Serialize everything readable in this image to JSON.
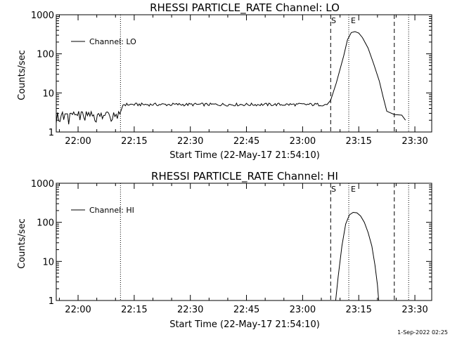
{
  "charts": [
    {
      "title": "RHESSI PARTICLE_RATE Channel: LO",
      "ylabel": "Counts/sec",
      "xlabel": "Start Time (22-May-17 21:54:10)",
      "legend": "Channel: LO",
      "marker_s": "S",
      "marker_e": "E"
    },
    {
      "title": "RHESSI PARTICLE_RATE Channel: HI",
      "ylabel": "Counts/sec",
      "xlabel": "Start Time (22-May-17 21:54:10)",
      "legend": "Channel: HI",
      "marker_s": "S",
      "marker_e": "E"
    }
  ],
  "footer": "1-Sep-2022 02:25",
  "chart_data": [
    {
      "type": "line",
      "title": "RHESSI PARTICLE_RATE Channel: LO",
      "xlabel": "Start Time (22-May-17 21:54:10)",
      "ylabel": "Counts/sec",
      "x_tick_labels": [
        "22:00",
        "22:15",
        "22:30",
        "22:45",
        "23:00",
        "23:15",
        "23:30"
      ],
      "y_tick_labels": [
        "1",
        "10",
        "100",
        "1000"
      ],
      "y_scale": "log",
      "xlim": [
        "21:54:10",
        "23:34:30"
      ],
      "ylim": [
        1,
        1000
      ],
      "legend_position": "top-left",
      "vlines_dashed": [
        "23:07:30",
        "23:24:30"
      ],
      "vlines_dotted": [
        "22:11:20",
        "23:12:20",
        "23:28:20"
      ],
      "series": [
        {
          "name": "Channel: LO",
          "x": [
            "21:54:10",
            "22:11:20",
            "22:12:00",
            "23:06:30",
            "23:07:30",
            "23:09:00",
            "23:11:00",
            "23:12:00",
            "23:13:00",
            "23:14:00",
            "23:15:00",
            "23:16:00",
            "23:17:30",
            "23:19:00",
            "23:20:30",
            "23:21:30",
            "23:22:30",
            "23:24:30",
            "23:26:30",
            "23:27:30"
          ],
          "y": [
            2.9,
            2.9,
            4.3,
            5.0,
            6.5,
            18,
            90,
            230,
            350,
            370,
            340,
            260,
            140,
            55,
            20,
            8,
            3.4,
            2.8,
            2.7,
            2.0
          ]
        }
      ]
    },
    {
      "type": "line",
      "title": "RHESSI PARTICLE_RATE Channel: HI",
      "xlabel": "Start Time (22-May-17 21:54:10)",
      "ylabel": "Counts/sec",
      "x_tick_labels": [
        "22:00",
        "22:15",
        "22:30",
        "22:45",
        "23:00",
        "23:15",
        "23:30"
      ],
      "y_tick_labels": [
        "1",
        "10",
        "100",
        "1000"
      ],
      "y_scale": "log",
      "xlim": [
        "21:54:10",
        "23:34:30"
      ],
      "ylim": [
        1,
        1000
      ],
      "legend_position": "top-left",
      "vlines_dashed": [
        "23:07:30",
        "23:24:30"
      ],
      "vlines_dotted": [
        "22:11:20",
        "23:12:20",
        "23:28:20"
      ],
      "series": [
        {
          "name": "Channel: HI",
          "x": [
            "23:08:50",
            "23:09:30",
            "23:10:30",
            "23:11:30",
            "23:12:30",
            "23:13:30",
            "23:14:30",
            "23:15:30",
            "23:16:30",
            "23:17:30",
            "23:18:30",
            "23:19:20",
            "23:20:00",
            "23:20:20"
          ],
          "y": [
            1.0,
            4,
            25,
            90,
            155,
            180,
            175,
            145,
            100,
            55,
            25,
            8,
            2.5,
            1.0
          ]
        }
      ]
    }
  ]
}
